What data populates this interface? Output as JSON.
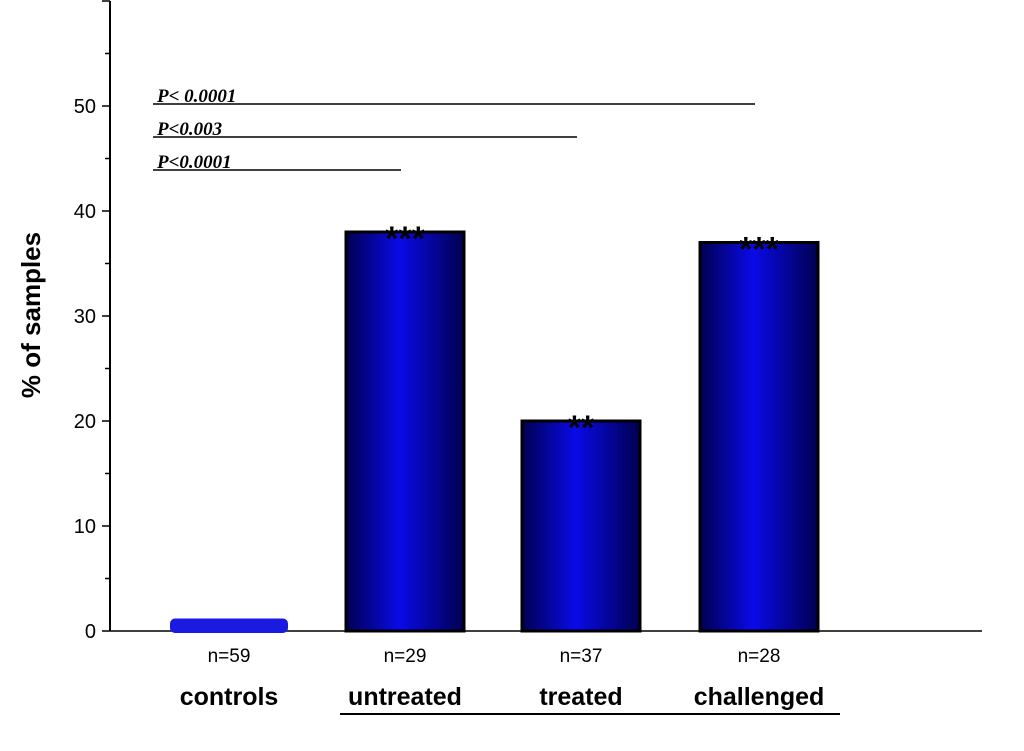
{
  "chart_data": {
    "type": "bar",
    "ylabel": "% of samples",
    "ylim": [
      0,
      60
    ],
    "yticks": [
      0,
      10,
      20,
      30,
      40,
      50
    ],
    "categories": [
      "controls",
      "untreated",
      "treated",
      "challenged"
    ],
    "values": [
      1,
      38,
      20,
      37
    ],
    "sample_sizes": [
      "n=59",
      "n=29",
      "n=37",
      "n=28"
    ],
    "significance": [
      "",
      "***",
      "**",
      "***"
    ],
    "comparisons": [
      {
        "label": "P< 0.0001",
        "from": "controls",
        "to": "challenged"
      },
      {
        "label": "P<0.003",
        "from": "controls",
        "to": "treated"
      },
      {
        "label": "P<0.0001",
        "from": "controls",
        "to": "untreated"
      }
    ],
    "bar_color": "#0a0ae8",
    "bar_dark": "#000050",
    "grid": false
  }
}
